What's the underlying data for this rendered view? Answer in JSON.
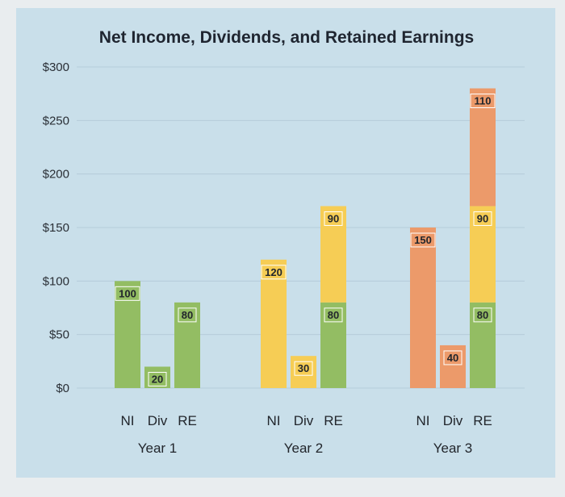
{
  "chart_data": {
    "type": "bar",
    "title": "Net Income, Dividends, and Retained Earnings",
    "xlabel": "",
    "ylabel": "",
    "ylim": [
      0,
      300
    ],
    "yticks": [
      "$0",
      "$50",
      "$100",
      "$150",
      "$200",
      "$250",
      "$300"
    ],
    "grid": true,
    "legend": "none",
    "bar_labels": [
      "NI",
      "Div",
      "RE"
    ],
    "groups": [
      {
        "name": "Year 1",
        "bars": [
          {
            "label": "NI",
            "segments": [
              {
                "value": 100,
                "color": "#93bd63"
              }
            ]
          },
          {
            "label": "Div",
            "segments": [
              {
                "value": 20,
                "color": "#93bd63"
              }
            ]
          },
          {
            "label": "RE",
            "segments": [
              {
                "value": 80,
                "color": "#93bd63"
              }
            ]
          }
        ]
      },
      {
        "name": "Year 2",
        "bars": [
          {
            "label": "NI",
            "segments": [
              {
                "value": 120,
                "color": "#f6cd55"
              }
            ]
          },
          {
            "label": "Div",
            "segments": [
              {
                "value": 30,
                "color": "#f6cd55"
              }
            ]
          },
          {
            "label": "RE",
            "segments": [
              {
                "value": 80,
                "color": "#93bd63"
              },
              {
                "value": 90,
                "color": "#f6cd55"
              }
            ]
          }
        ]
      },
      {
        "name": "Year 3",
        "bars": [
          {
            "label": "NI",
            "segments": [
              {
                "value": 150,
                "color": "#ec9a6a"
              }
            ]
          },
          {
            "label": "Div",
            "segments": [
              {
                "value": 40,
                "color": "#ec9a6a"
              }
            ]
          },
          {
            "label": "RE",
            "segments": [
              {
                "value": 80,
                "color": "#93bd63"
              },
              {
                "value": 90,
                "color": "#f6cd55"
              },
              {
                "value": 110,
                "color": "#ec9a6a"
              }
            ]
          }
        ]
      }
    ],
    "colors": {
      "background": "#c9dfea",
      "frame": "#f4f6f7",
      "gridline": "#b5ccd9"
    }
  }
}
